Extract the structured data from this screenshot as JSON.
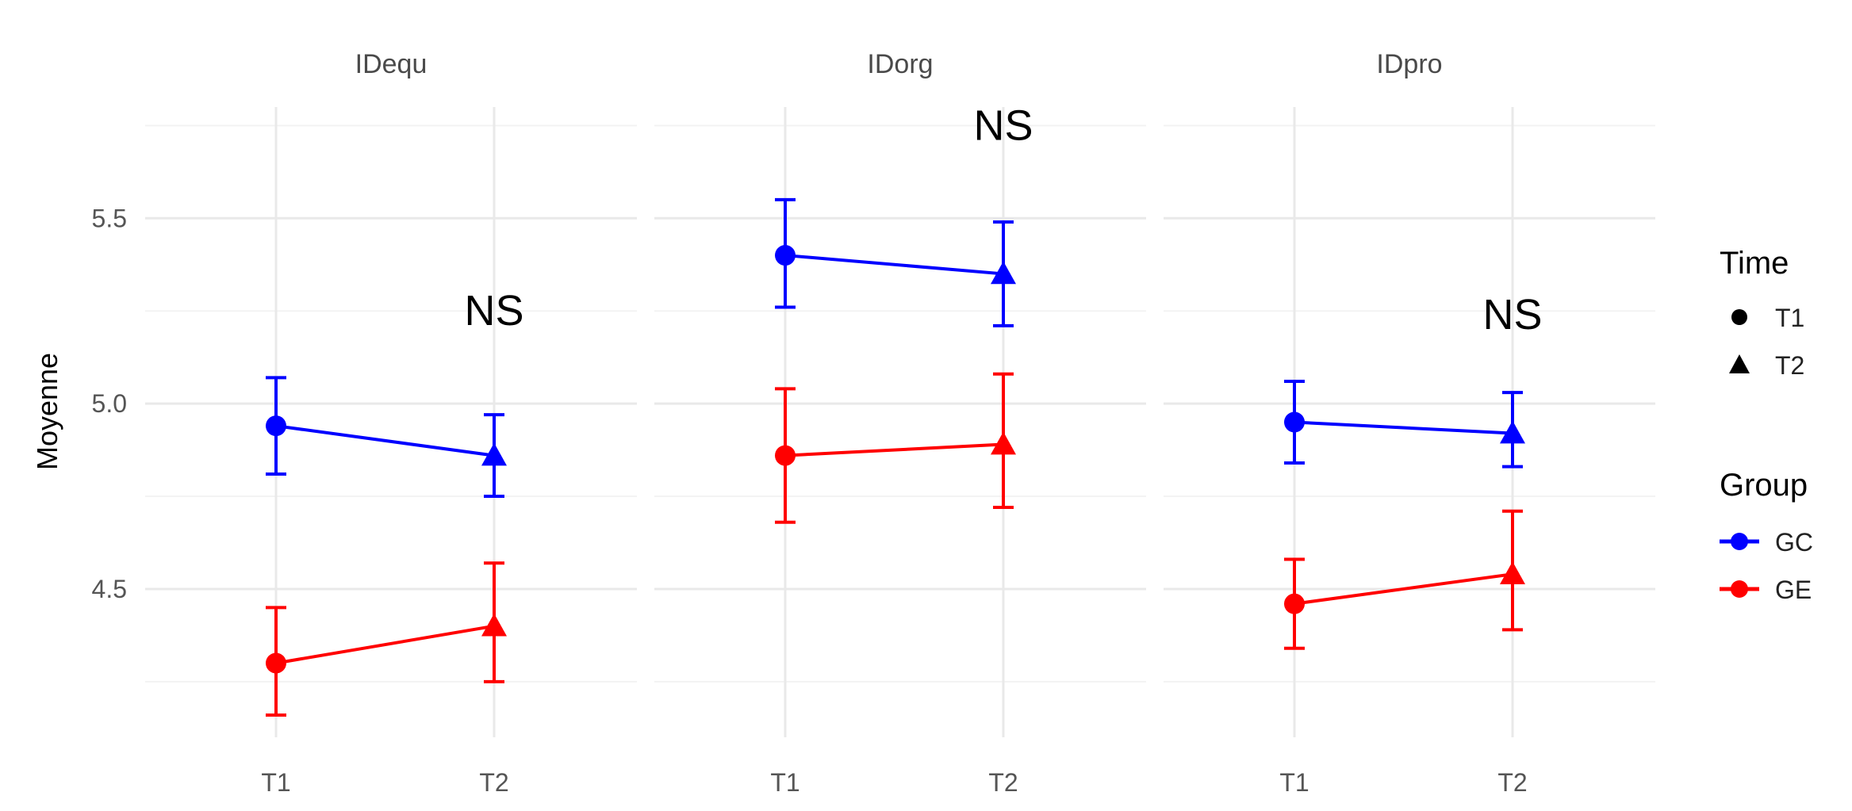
{
  "chart_data": {
    "type": "line",
    "ylabel": "Moyenne",
    "xlabel": "",
    "ylim": [
      4.1,
      5.8
    ],
    "yticks": [
      "4.5",
      "5.0",
      "5.5"
    ],
    "categories": [
      "T1",
      "T2"
    ],
    "grid": true,
    "legend_placement": "right",
    "legends": {
      "time": {
        "title": "Time",
        "entries": [
          {
            "label": "T1",
            "shape": "circle"
          },
          {
            "label": "T2",
            "shape": "triangle"
          }
        ]
      },
      "group": {
        "title": "Group",
        "entries": [
          {
            "label": "GC",
            "color": "#0000ff"
          },
          {
            "label": "GE",
            "color": "#ff0000"
          }
        ]
      }
    },
    "panels": [
      {
        "title": "IDequ",
        "annotation": "NS",
        "annotation_at": {
          "x": "T2",
          "y": 5.25
        },
        "series": [
          {
            "name": "GC",
            "color": "#0000ff",
            "values": [
              4.94,
              4.86
            ],
            "lower": [
              4.81,
              4.75
            ],
            "upper": [
              5.07,
              4.97
            ]
          },
          {
            "name": "GE",
            "color": "#ff0000",
            "values": [
              4.3,
              4.4
            ],
            "lower": [
              4.16,
              4.25
            ],
            "upper": [
              4.45,
              4.57
            ]
          }
        ]
      },
      {
        "title": "IDorg",
        "annotation": "NS",
        "annotation_at": {
          "x": "T2",
          "y": 5.75
        },
        "series": [
          {
            "name": "GC",
            "color": "#0000ff",
            "values": [
              5.4,
              5.35
            ],
            "lower": [
              5.26,
              5.21
            ],
            "upper": [
              5.55,
              5.49
            ]
          },
          {
            "name": "GE",
            "color": "#ff0000",
            "values": [
              4.86,
              4.89
            ],
            "lower": [
              4.68,
              4.72
            ],
            "upper": [
              5.04,
              5.08
            ]
          }
        ]
      },
      {
        "title": "IDpro",
        "annotation": "NS",
        "annotation_at": {
          "x": "T2",
          "y": 5.24
        },
        "series": [
          {
            "name": "GC",
            "color": "#0000ff",
            "values": [
              4.95,
              4.92
            ],
            "lower": [
              4.84,
              4.83
            ],
            "upper": [
              5.06,
              5.03
            ]
          },
          {
            "name": "GE",
            "color": "#ff0000",
            "values": [
              4.46,
              4.54
            ],
            "lower": [
              4.34,
              4.39
            ],
            "upper": [
              4.58,
              4.71
            ]
          }
        ]
      }
    ]
  }
}
